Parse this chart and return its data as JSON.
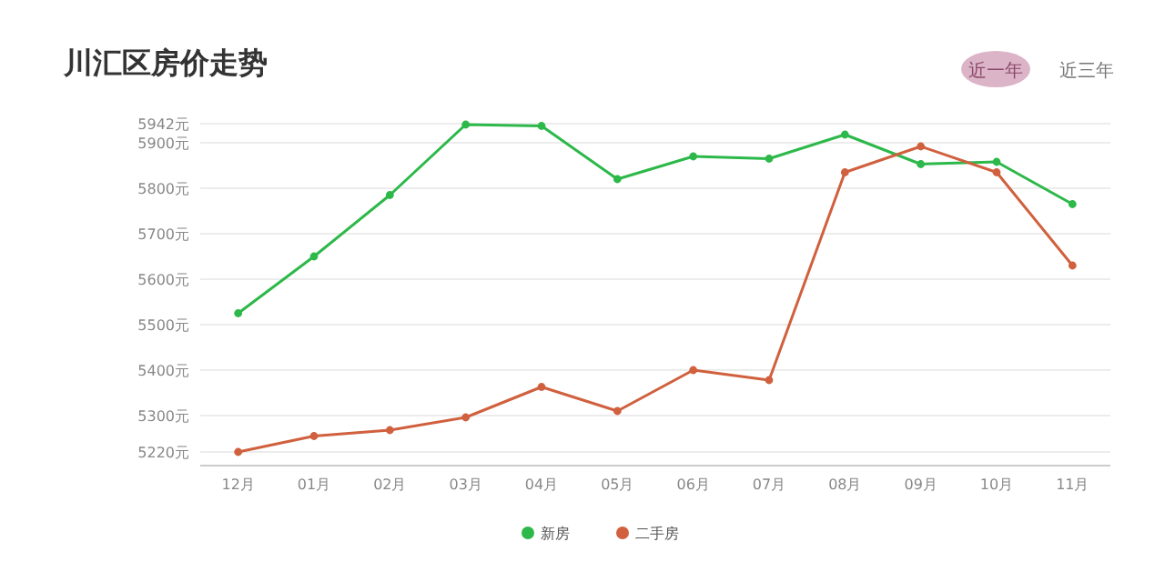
{
  "chart_data": {
    "type": "line",
    "title": "川汇区房价走势",
    "annotations": [
      "近一年",
      "近三年"
    ],
    "categories": [
      "12月",
      "01月",
      "02月",
      "03月",
      "04月",
      "05月",
      "06月",
      "07月",
      "08月",
      "09月",
      "10月",
      "11月"
    ],
    "series": [
      {
        "name": "新房",
        "color": "#2db84a",
        "values": [
          5525,
          5650,
          5785,
          5940,
          5937,
          5820,
          5870,
          5865,
          5918,
          5853,
          5858,
          5765
        ]
      },
      {
        "name": "二手房",
        "color": "#d0603e",
        "values": [
          5220,
          5255,
          5268,
          5296,
          5363,
          5310,
          5400,
          5378,
          5835,
          5892,
          5835,
          5630
        ]
      }
    ],
    "ylim": [
      5190,
      5942
    ],
    "yticks": [
      {
        "value": 5220,
        "label": "5220元"
      },
      {
        "value": 5300,
        "label": "5300元"
      },
      {
        "value": 5400,
        "label": "5400元"
      },
      {
        "value": 5500,
        "label": "5500元"
      },
      {
        "value": 5600,
        "label": "5600元"
      },
      {
        "value": 5700,
        "label": "5700元"
      },
      {
        "value": 5800,
        "label": "5800元"
      },
      {
        "value": 5900,
        "label": "5900元"
      },
      {
        "value": 5942,
        "label": "5942元"
      }
    ],
    "grid": "y",
    "legend": "bottom",
    "marker": "circle",
    "line_style": "solid"
  }
}
